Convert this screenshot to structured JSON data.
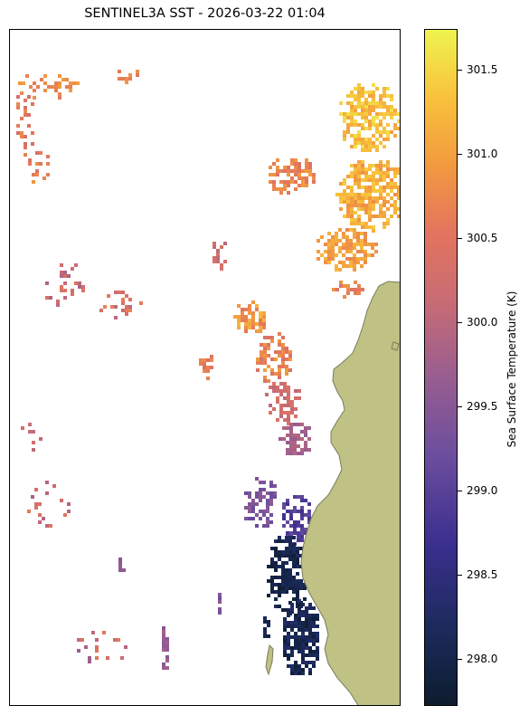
{
  "title": "SENTINEL3A SST - 2026-03-22 01:04",
  "colorbar": {
    "label": "Sea Surface Temperature (K)",
    "min": 297.72,
    "max": 301.74,
    "ticks": [
      "298.0",
      "298.5",
      "299.0",
      "299.5",
      "300.0",
      "300.5",
      "301.0",
      "301.5"
    ],
    "tick_values": [
      298.0,
      298.5,
      299.0,
      299.5,
      300.0,
      300.5,
      301.0,
      301.5
    ],
    "colormap": [
      "#0d1c2e",
      "#1b2a5a",
      "#3b2f8f",
      "#6c4e9e",
      "#9a5e8f",
      "#c96c74",
      "#e3745e",
      "#f29a3f",
      "#f8c23c",
      "#eff34f"
    ]
  },
  "colors": {
    "land": "#bfc185",
    "coastline": "#7c7c5a"
  }
}
